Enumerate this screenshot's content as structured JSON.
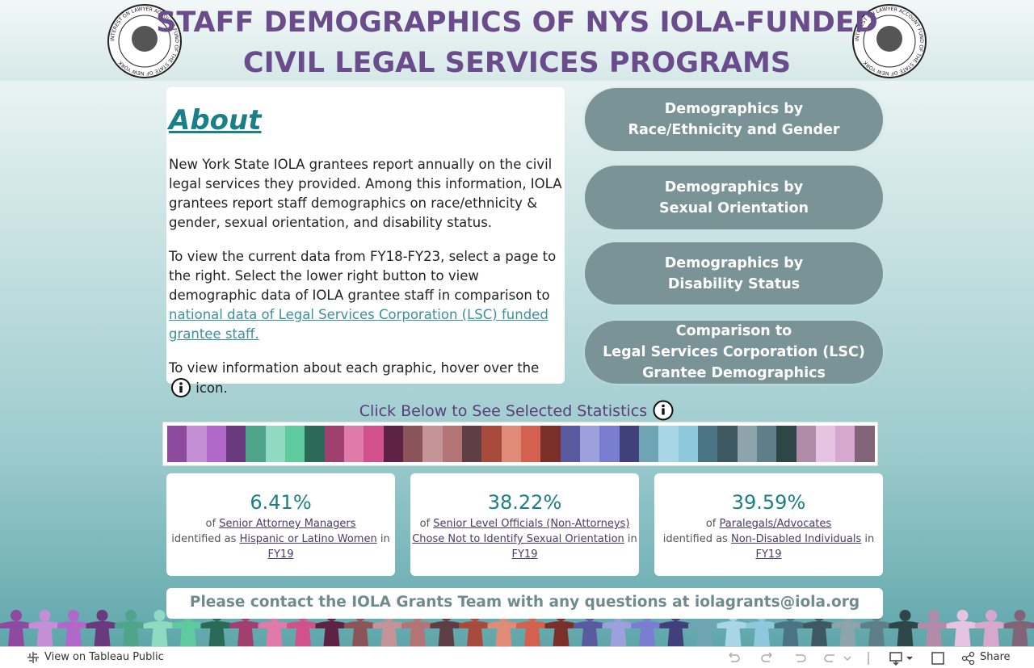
{
  "header": {
    "title_lines": [
      "STAFF DEMOGRAPHICS OF NYS IOLA-FUNDED",
      "CIVIL LEGAL SERVICES PROGRAMS"
    ],
    "seal_text": "INTEREST ON LAWYER ACCOUNT FUND OF THE STATE OF NEW YORK"
  },
  "about": {
    "heading": "About",
    "paragraph1": "New York State IOLA grantees report annually on the civil legal services they provided. Among this information, IOLA grantees report staff demographics on race/ethnicity & gender, sexual orientation, and disability status.",
    "paragraph2": {
      "text": "To view the current data from FY18-FY23, select a page to the right. Select the lower right button to view demographic data of IOLA grantee staff in comparison to",
      "link": "national data of Legal Services Corporation (LSC) funded grantee staff."
    },
    "paragraph3": {
      "before": "To view information about each graphic, hover over the",
      "after": "icon."
    }
  },
  "nav_buttons": [
    [
      "Demographics by",
      "Race/Ethnicity and Gender"
    ],
    [
      "Demographics by",
      "Sexual Orientation"
    ],
    [
      "Demographics by",
      "Disability Status"
    ],
    [
      "Comparison to",
      "Legal Services Corporation (LSC)",
      "Grantee Demographics"
    ]
  ],
  "selector": {
    "label": "Click Below to See Selected Statistics",
    "colors": [
      "#8e4a9e",
      "#c58fd6",
      "#b069c9",
      "#6a3a7e",
      "#4fa58a",
      "#8fdac0",
      "#5ecb9e",
      "#2a6a56",
      "#a0406e",
      "#e07aa8",
      "#d2508c",
      "#5e2244",
      "#8a5458",
      "#c49498",
      "#b47476",
      "#5e3e44",
      "#a84a3c",
      "#e08a78",
      "#d46050",
      "#7a3028",
      "#5a5aa0",
      "#9ca0dc",
      "#7a7ed0",
      "#40407a",
      "#6ea4b4",
      "#a8d6e6",
      "#8ec8dc",
      "#4a7484",
      "#3e5862",
      "#8ea4ac",
      "#5e7e8a",
      "#2e4648",
      "#b08ca8",
      "#e4c4e0",
      "#d6a8d0",
      "#826478"
    ]
  },
  "stat_cards": [
    {
      "value": "6.41%",
      "of": "of",
      "group": "Senior Attorney Managers",
      "verb": "identified as",
      "category": "Hispanic or Latino Women",
      "in": "in",
      "year": "FY19"
    },
    {
      "value": "38.22%",
      "of": "of",
      "group": "Senior Level Officials (Non-Attorneys)",
      "verb": "",
      "category": "Chose Not to Identify Sexual Orientation",
      "in": "in",
      "year": "FY19"
    },
    {
      "value": "39.59%",
      "of": "of",
      "group": "Paralegals/Advocates",
      "verb": "identified as",
      "category": "Non-Disabled Individuals",
      "in": "in",
      "year": "FY19"
    }
  ],
  "contact": "Please contact the IOLA Grants Team with any questions at iolagrants@iola.org",
  "toolbar": {
    "view_link": "View on Tableau Public",
    "share": "Share"
  }
}
